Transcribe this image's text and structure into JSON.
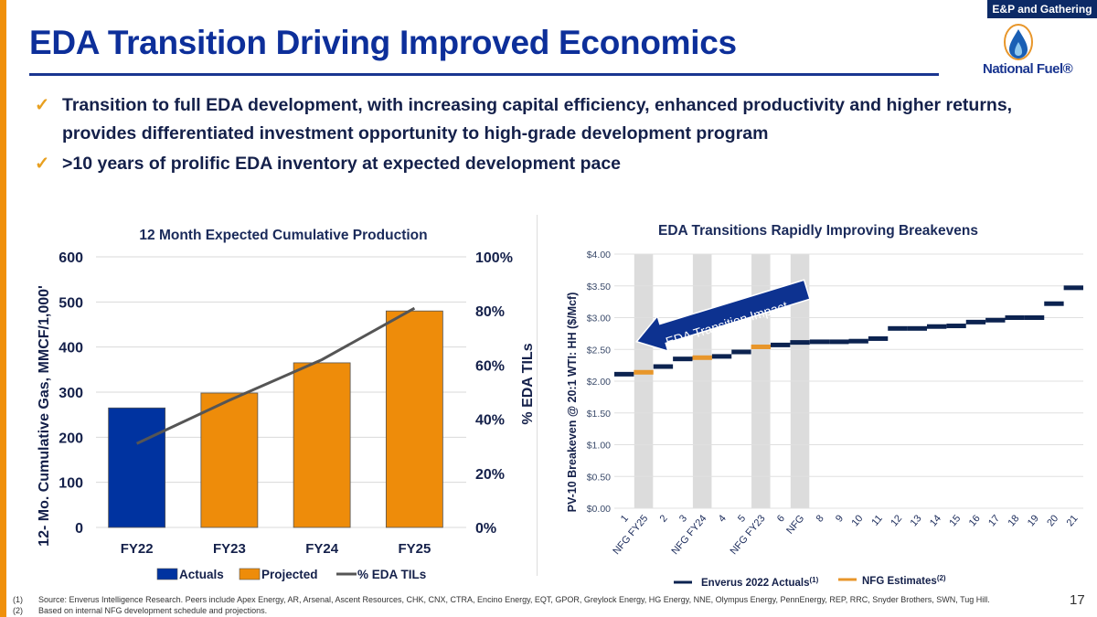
{
  "header": {
    "section_tag": "E&P and Gathering",
    "title": "EDA Transition Driving Improved Economics",
    "logo_text": "National Fuel®"
  },
  "bullets": [
    {
      "icon": "checkmark-icon",
      "text_line1": "Transition to full EDA development, with increasing capital efficiency, enhanced productivity and higher returns,",
      "text_line2": "provides differentiated investment opportunity to high-grade development program"
    },
    {
      "icon": "checkmark-icon",
      "text_line1": ">10 years of prolific EDA inventory at expected development pace"
    }
  ],
  "chart_data": [
    {
      "type": "bar",
      "title": "12 Month Expected Cumulative Production",
      "categories": [
        "FY22",
        "FY23",
        "FY24",
        "FY25"
      ],
      "ylabel": "12- Mo. Cumulative Gas, MMCF/1,000'",
      "ylim": [
        0,
        600
      ],
      "yticks": [
        "0",
        "100",
        "200",
        "300",
        "400",
        "500",
        "600"
      ],
      "y2label": "% EDA TILs",
      "y2lim": [
        0,
        100
      ],
      "y2ticks": [
        "0%",
        "20%",
        "40%",
        "60%",
        "80%",
        "100%"
      ],
      "grid": true,
      "legend_position": "bottom",
      "series": [
        {
          "name": "Actuals",
          "kind": "bar",
          "color": "#0033a0",
          "values": [
            265,
            null,
            null,
            null
          ]
        },
        {
          "name": "Projected",
          "kind": "bar",
          "color": "#ee8c0a",
          "values": [
            null,
            298,
            365,
            480
          ]
        },
        {
          "name": "% EDA TILs",
          "kind": "line",
          "axis": "right",
          "color": "#555555",
          "values": [
            31,
            47,
            62,
            81
          ]
        }
      ]
    },
    {
      "type": "scatter",
      "title": "EDA Transitions Rapidly Improving Breakevens",
      "ylabel": "PV-10 Breakeven @ 20:1 WTI: HH ($/Mcf)",
      "ylim": [
        0,
        4
      ],
      "yticks": [
        "$0.00",
        "$0.50",
        "$1.00",
        "$1.50",
        "$2.00",
        "$2.50",
        "$3.00",
        "$3.50",
        "$4.00"
      ],
      "grid": true,
      "legend_position": "bottom",
      "categories": [
        "1",
        "NFG FY25",
        "2",
        "3",
        "NFG FY24",
        "4",
        "5",
        "NFG FY23",
        "6",
        "NFG",
        "8",
        "9",
        "10",
        "11",
        "12",
        "13",
        "14",
        "15",
        "16",
        "17",
        "18",
        "19",
        "20",
        "21"
      ],
      "values": [
        2.11,
        2.14,
        2.23,
        2.35,
        2.37,
        2.39,
        2.46,
        2.54,
        2.57,
        2.61,
        2.62,
        2.62,
        2.63,
        2.67,
        2.83,
        2.83,
        2.86,
        2.87,
        2.93,
        2.96,
        3.0,
        3.0,
        3.22,
        3.47
      ],
      "series_of_point": [
        "a",
        "e",
        "a",
        "a",
        "e",
        "a",
        "a",
        "e",
        "a",
        "a",
        "a",
        "a",
        "a",
        "a",
        "a",
        "a",
        "a",
        "a",
        "a",
        "a",
        "a",
        "a",
        "a",
        "a"
      ],
      "highlighted_categories": [
        "NFG FY25",
        "NFG FY24",
        "NFG FY23",
        "NFG"
      ],
      "series": [
        {
          "key": "a",
          "name": "Enverus 2022 Actuals",
          "superscript": "(1)",
          "color": "#0c2350"
        },
        {
          "key": "e",
          "name": "NFG Estimates",
          "superscript": "(2)",
          "color": "#e8962a"
        }
      ],
      "annotation": "EDA Transition Impact",
      "annotation_color": "#0d3290"
    }
  ],
  "footnotes": [
    {
      "num": "(1)",
      "text": "Source: Enverus Intelligence Research. Peers include Apex Energy, AR, Arsenal, Ascent Resources, CHK, CNX, CTRA, Encino Energy, EQT, GPOR, Greylock Energy, HG Energy, NNE, Olympus Energy, PennEnergy, REP, RRC, Snyder Brothers, SWN, Tug Hill."
    },
    {
      "num": "(2)",
      "text": "Based on internal NFG development schedule and projections."
    }
  ],
  "page_number": "17"
}
